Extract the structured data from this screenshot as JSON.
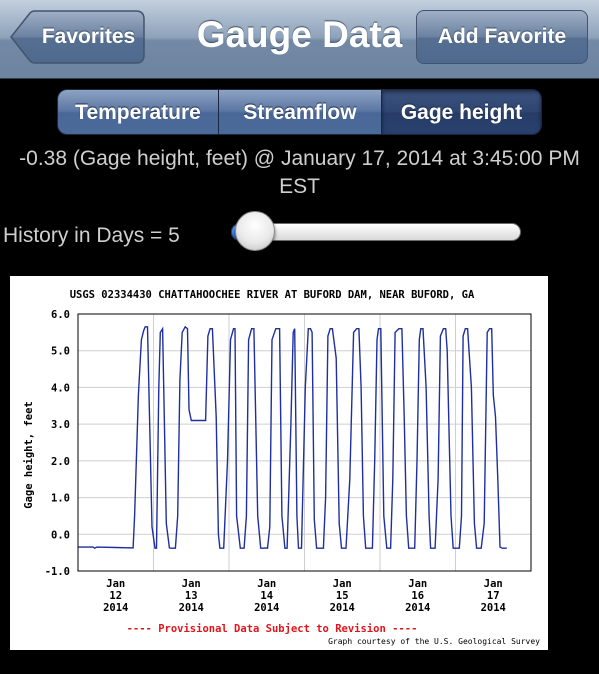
{
  "navbar": {
    "title": "Gauge Data",
    "back_label": "Favorites",
    "add_label": "Add Favorite"
  },
  "segments": [
    {
      "label": "Temperature",
      "selected": false
    },
    {
      "label": "Streamflow",
      "selected": false
    },
    {
      "label": "Gage height",
      "selected": true
    }
  ],
  "reading": {
    "line1": "-0.38 (Gage height, feet) @ January 17, 2014 at 3:45:00 PM",
    "line2": "EST"
  },
  "history": {
    "label": "History in Days = 5",
    "value": 5
  },
  "colors": {
    "line": "#1f2fa0",
    "grid": "#cfcfcf",
    "provisional": "#e0151b"
  },
  "chart_data": {
    "type": "line",
    "title": "USGS 02334430 CHATTAHOOCHEE RIVER AT BUFORD DAM, NEAR BUFORD, GA",
    "ylabel": "Gage height, feet",
    "xlabel": "",
    "ylim": [
      -1.0,
      6.0
    ],
    "yticks": [
      "-1.0",
      "0.0",
      "1.0",
      "2.0",
      "3.0",
      "4.0",
      "5.0",
      "6.0"
    ],
    "xlim": [
      -0.5,
      5.5
    ],
    "xticks": [
      {
        "x": 0,
        "lines": [
          "Jan",
          "12",
          "2014"
        ]
      },
      {
        "x": 1,
        "lines": [
          "Jan",
          "13",
          "2014"
        ]
      },
      {
        "x": 2,
        "lines": [
          "Jan",
          "14",
          "2014"
        ]
      },
      {
        "x": 3,
        "lines": [
          "Jan",
          "15",
          "2014"
        ]
      },
      {
        "x": 4,
        "lines": [
          "Jan",
          "16",
          "2014"
        ]
      },
      {
        "x": 5,
        "lines": [
          "Jan",
          "17",
          "2014"
        ]
      }
    ],
    "grid": true,
    "notes": {
      "provisional": "---- Provisional Data Subject to Revision ----",
      "courtesy": "Graph courtesy of the U.S. Geological Survey"
    },
    "series": [
      {
        "x": [
          -0.5,
          -0.3,
          -0.28,
          -0.25,
          0.0,
          0.23,
          0.25,
          0.3,
          0.34,
          0.37,
          0.39,
          0.42,
          0.48,
          0.52,
          0.54,
          0.57,
          0.59,
          0.62,
          0.67,
          0.71,
          0.73,
          0.76,
          0.79,
          0.82,
          0.85,
          0.88,
          0.92,
          0.95,
          0.97,
          1.0,
          1.04,
          1.06,
          1.08,
          1.12,
          1.16,
          1.19,
          1.22,
          1.25,
          1.28,
          1.33,
          1.36,
          1.38,
          1.41,
          1.43,
          1.48,
          1.52,
          1.56,
          1.58,
          1.6,
          1.65,
          1.7,
          1.73,
          1.76,
          1.8,
          1.83,
          1.88,
          1.92,
          1.96,
          1.98,
          2.01,
          2.04,
          2.07,
          2.12,
          2.17,
          2.2,
          2.24,
          2.27,
          2.32,
          2.35,
          2.37,
          2.4,
          2.42,
          2.46,
          2.51,
          2.55,
          2.58,
          2.6,
          2.63,
          2.66,
          2.71,
          2.75,
          2.78,
          2.81,
          2.84,
          2.87,
          2.92,
          2.96,
          2.99,
          3.02,
          3.05,
          3.1,
          3.15,
          3.19,
          3.22,
          3.25,
          3.28,
          3.31,
          3.35,
          3.4,
          3.43,
          3.46,
          3.48,
          3.51,
          3.55,
          3.59,
          3.62,
          3.64,
          3.67,
          3.7,
          3.75,
          3.79,
          3.82,
          3.85,
          3.88,
          3.91,
          3.96,
          3.99,
          4.02,
          4.04,
          4.07,
          4.11,
          4.15,
          4.17,
          4.2,
          4.23,
          4.27,
          4.3,
          4.34,
          4.37,
          4.39,
          4.41,
          4.44,
          4.47,
          4.51,
          4.55,
          4.58,
          4.6,
          4.63,
          4.66,
          4.71,
          4.75,
          4.78,
          4.81,
          4.84,
          4.88,
          4.92,
          4.95,
          4.98,
          5.0,
          5.03,
          5.06,
          5.09,
          5.12,
          5.14,
          5.16,
          5.18
        ],
        "y": [
          -0.35,
          -0.35,
          -0.38,
          -0.35,
          -0.36,
          -0.37,
          0.5,
          3.8,
          5.3,
          5.55,
          5.65,
          5.65,
          0.2,
          -0.38,
          -0.38,
          4.0,
          5.5,
          5.6,
          0.3,
          -0.37,
          -0.38,
          -0.38,
          -0.38,
          0.5,
          4.2,
          5.5,
          5.65,
          5.6,
          3.4,
          3.1,
          3.1,
          3.1,
          3.1,
          3.1,
          3.1,
          3.1,
          5.4,
          5.6,
          5.6,
          3.2,
          0.0,
          -0.38,
          -0.38,
          -0.38,
          2.0,
          5.3,
          5.6,
          5.6,
          0.5,
          -0.38,
          -0.38,
          0.5,
          5.3,
          5.6,
          5.6,
          0.5,
          -0.38,
          -0.38,
          -0.37,
          -0.38,
          0.2,
          5.3,
          5.6,
          5.6,
          0.5,
          -0.38,
          -0.38,
          3.0,
          5.5,
          5.6,
          0.5,
          -0.38,
          -0.38,
          4.0,
          5.6,
          5.6,
          5.5,
          0.4,
          -0.38,
          -0.38,
          -0.38,
          1.0,
          5.4,
          5.6,
          5.6,
          4.8,
          0.3,
          -0.38,
          -0.38,
          -0.38,
          1.5,
          5.5,
          5.6,
          5.6,
          4.0,
          0.5,
          -0.38,
          -0.38,
          -0.38,
          2.0,
          5.3,
          5.6,
          5.6,
          0.5,
          -0.38,
          -0.38,
          -0.38,
          1.5,
          5.5,
          5.6,
          5.6,
          3.2,
          0.5,
          -0.38,
          -0.38,
          -0.38,
          2.0,
          5.3,
          5.6,
          5.6,
          4.0,
          0.5,
          -0.38,
          -0.38,
          -0.38,
          1.5,
          5.4,
          5.6,
          5.6,
          5.0,
          3.2,
          0.5,
          -0.38,
          -0.38,
          -0.38,
          0.5,
          5.4,
          5.6,
          5.6,
          4.0,
          0.3,
          -0.38,
          -0.38,
          -0.38,
          0.3,
          5.5,
          5.6,
          5.6,
          3.8,
          3.2,
          1.5,
          -0.35,
          -0.38,
          -0.38,
          -0.38,
          -0.38
        ]
      }
    ]
  }
}
